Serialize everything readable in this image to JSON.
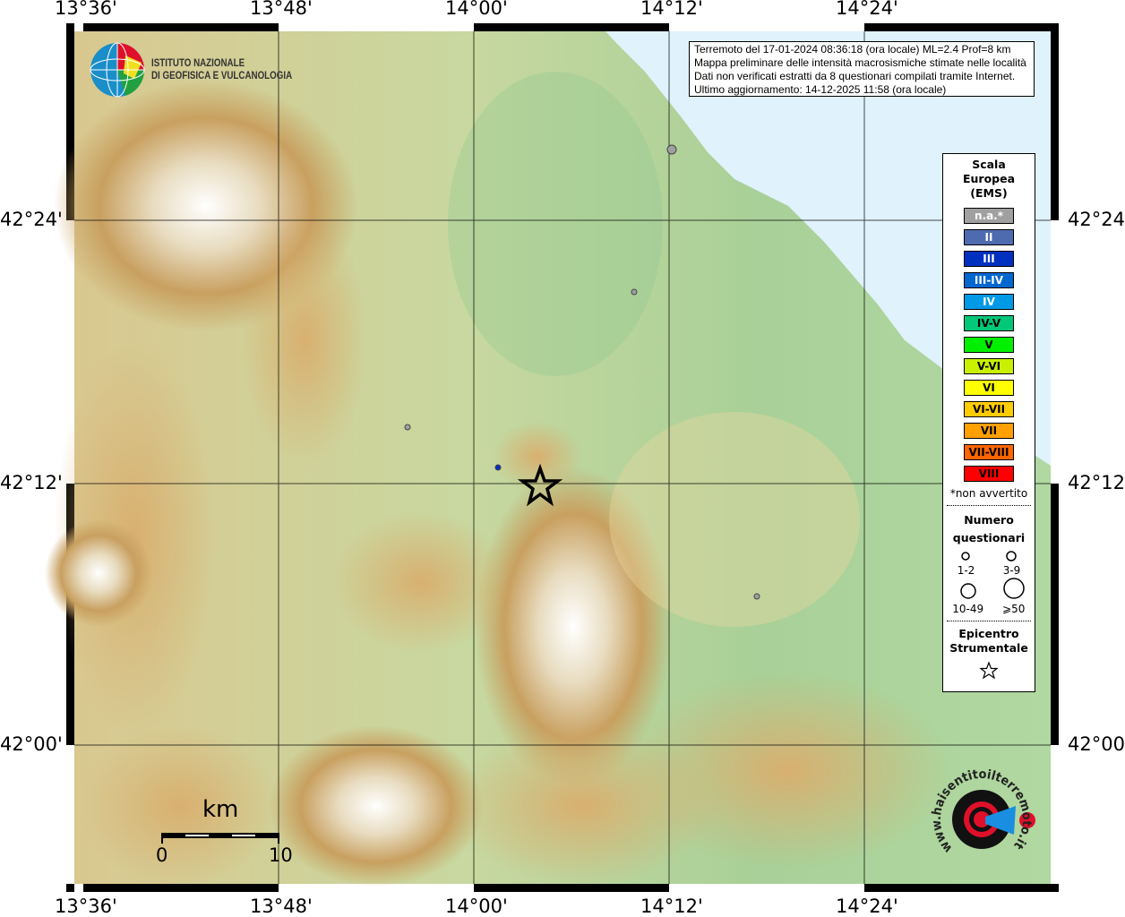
{
  "axes": {
    "top_lon": [
      "13°36'",
      "13°48'",
      "14°00'",
      "14°12'",
      "14°24'"
    ],
    "bottom_lon": [
      "13°36'",
      "13°48'",
      "14°00'",
      "14°12'",
      "14°24'"
    ],
    "left_lat": [
      "42°24'",
      "42°12'",
      "42°00'"
    ],
    "right_lat": [
      "42°24'",
      "42°12'",
      "42°00'"
    ]
  },
  "logo": {
    "line1": "ISTITUTO NAZIONALE",
    "line2": "DI GEOFISICA E VULCANOLOGIA"
  },
  "info": {
    "line1": "Terremoto del 17-01-2024 08:36:18 (ora locale) ML=2.4 Prof=8 km",
    "line2": "Mappa preliminare delle intensità macrosismiche stimate nelle località",
    "line3": "Dati non verificati estratti da 8 questionari compilati tramite Internet.",
    "line4": "Ultimo aggiornamento: 14-12-2025 11:58 (ora locale)"
  },
  "legend": {
    "title1": "Scala",
    "title2": "Europea",
    "title3": "(EMS)",
    "scale": [
      {
        "label": "n.a.*",
        "color": "#a0a0a0",
        "text": "#ffffff"
      },
      {
        "label": "II",
        "color": "#4f6bb0",
        "text": "#ffffff"
      },
      {
        "label": "III",
        "color": "#0030c0",
        "text": "#ffffff"
      },
      {
        "label": "III-IV",
        "color": "#0066d0",
        "text": "#ffffff"
      },
      {
        "label": "IV",
        "color": "#0099e6",
        "text": "#ffffff"
      },
      {
        "label": "IV-V",
        "color": "#00c878",
        "text": "#000000"
      },
      {
        "label": "V",
        "color": "#00f000",
        "text": "#000000"
      },
      {
        "label": "V-VI",
        "color": "#c8f000",
        "text": "#000000"
      },
      {
        "label": "VI",
        "color": "#ffff00",
        "text": "#000000"
      },
      {
        "label": "VI-VII",
        "color": "#ffcc00",
        "text": "#000000"
      },
      {
        "label": "VII",
        "color": "#ffa000",
        "text": "#000000"
      },
      {
        "label": "VII-VIII",
        "color": "#ff6600",
        "text": "#000000"
      },
      {
        "label": "VIII",
        "color": "#ff0000",
        "text": "#000000"
      }
    ],
    "note": "*non avvertito",
    "count_title1": "Numero",
    "count_title2": "questionari",
    "counts": [
      "1-2",
      "3-9",
      "10-49",
      "⩾50"
    ],
    "epi_title1": "Epicentro",
    "epi_title2": "Strumentale"
  },
  "scalebar": {
    "unit": "km",
    "min": "0",
    "max": "10"
  },
  "points": [
    {
      "intensity": "n.a.*",
      "count": "3-9"
    },
    {
      "intensity": "n.a.*",
      "count": "1-2"
    },
    {
      "intensity": "n.a.*",
      "count": "1-2"
    },
    {
      "intensity": "n.a.*",
      "count": "1-2"
    },
    {
      "intensity": "III",
      "count": "1-2"
    }
  ],
  "badge": {
    "text": "www.haisentitoilterremoto.it"
  }
}
